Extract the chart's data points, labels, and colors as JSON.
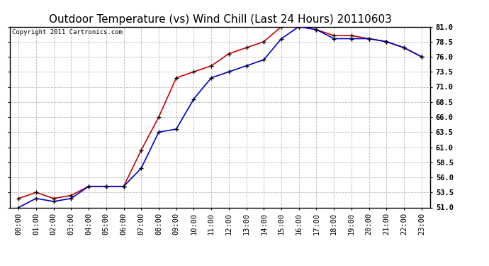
{
  "title": "Outdoor Temperature (vs) Wind Chill (Last 24 Hours) 20110603",
  "copyright_text": "Copyright 2011 Cartronics.com",
  "x_labels": [
    "00:00",
    "01:00",
    "02:00",
    "03:00",
    "04:00",
    "05:00",
    "06:00",
    "07:00",
    "08:00",
    "09:00",
    "10:00",
    "11:00",
    "12:00",
    "13:00",
    "14:00",
    "15:00",
    "16:00",
    "17:00",
    "18:00",
    "19:00",
    "20:00",
    "21:00",
    "22:00",
    "23:00"
  ],
  "temp_red": [
    52.5,
    53.5,
    52.5,
    53.0,
    54.5,
    54.5,
    54.5,
    60.5,
    66.0,
    72.5,
    73.5,
    74.5,
    76.5,
    77.5,
    78.5,
    81.0,
    81.0,
    80.5,
    79.5,
    79.5,
    79.0,
    78.5,
    77.5,
    76.0
  ],
  "wind_blue": [
    51.0,
    52.5,
    52.0,
    52.5,
    54.5,
    54.5,
    54.5,
    57.5,
    63.5,
    64.0,
    69.0,
    72.5,
    73.5,
    74.5,
    75.5,
    79.0,
    81.0,
    80.5,
    79.0,
    79.0,
    79.0,
    78.5,
    77.5,
    76.0
  ],
  "ylim": [
    51.0,
    81.0
  ],
  "yticks": [
    51.0,
    53.5,
    56.0,
    58.5,
    61.0,
    63.5,
    66.0,
    68.5,
    71.0,
    73.5,
    76.0,
    78.5,
    81.0
  ],
  "background_color": "#ffffff",
  "plot_bg_color": "#ffffff",
  "grid_color": "#bbbbbb",
  "red_color": "#cc0000",
  "blue_color": "#0000cc",
  "title_fontsize": 11,
  "tick_fontsize": 7.5,
  "copyright_fontsize": 6.5
}
